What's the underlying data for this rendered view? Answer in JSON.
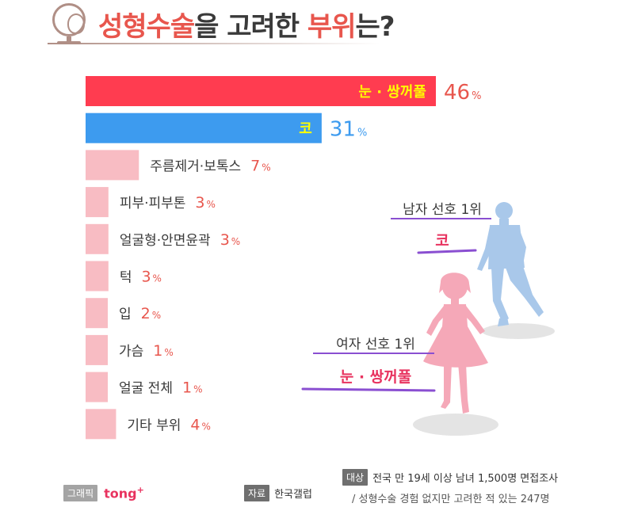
{
  "header": {
    "title_parts": [
      "성형수술",
      "을 고려한 ",
      "부위",
      "는?"
    ]
  },
  "chart_data": {
    "type": "bar",
    "orientation": "horizontal",
    "categories": [
      "눈 · 쌍꺼풀",
      "코",
      "주름제거·보톡스",
      "피부·피부톤",
      "얼굴형·안면윤곽",
      "턱",
      "입",
      "가슴",
      "얼굴 전체",
      "기타 부위"
    ],
    "values": [
      46,
      31,
      7,
      3,
      3,
      3,
      2,
      1,
      1,
      4
    ],
    "unit": "%",
    "xlim": [
      0,
      46
    ],
    "colors": {
      "first": "#ff3c50",
      "second": "#3d9bef",
      "rest": "#f8bcc3",
      "label_inside": "#ffff00",
      "value_red": "#e8564d",
      "value_blue": "#3d9bef",
      "text": "#3a3a3a"
    },
    "title": "성형수술을 고려한 부위는?",
    "xlabel": "",
    "ylabel": "",
    "legend": "none",
    "grid": false
  },
  "callouts": {
    "man": {
      "sub": "남자 선호 1위",
      "main": "코",
      "accent": "#8a4fd1",
      "figure_color": "#a9c8ea"
    },
    "woman": {
      "sub": "여자 선호 1위",
      "main": "눈 · 쌍꺼풀",
      "accent": "#8a4fd1",
      "figure_color": "#f5a8b8"
    }
  },
  "footer": {
    "graphic_tag": "그래픽",
    "graphic_brand": "tong",
    "graphic_brand_sup": "+",
    "source_tag": "자료",
    "source_value": "한국갤럽",
    "target_tag": "대상",
    "target_value": "전국 만 19세 이상 남녀 1,500명 면접조사",
    "target_note": "/ 성형수술 경험 없지만 고려한 적 있는 247명"
  }
}
